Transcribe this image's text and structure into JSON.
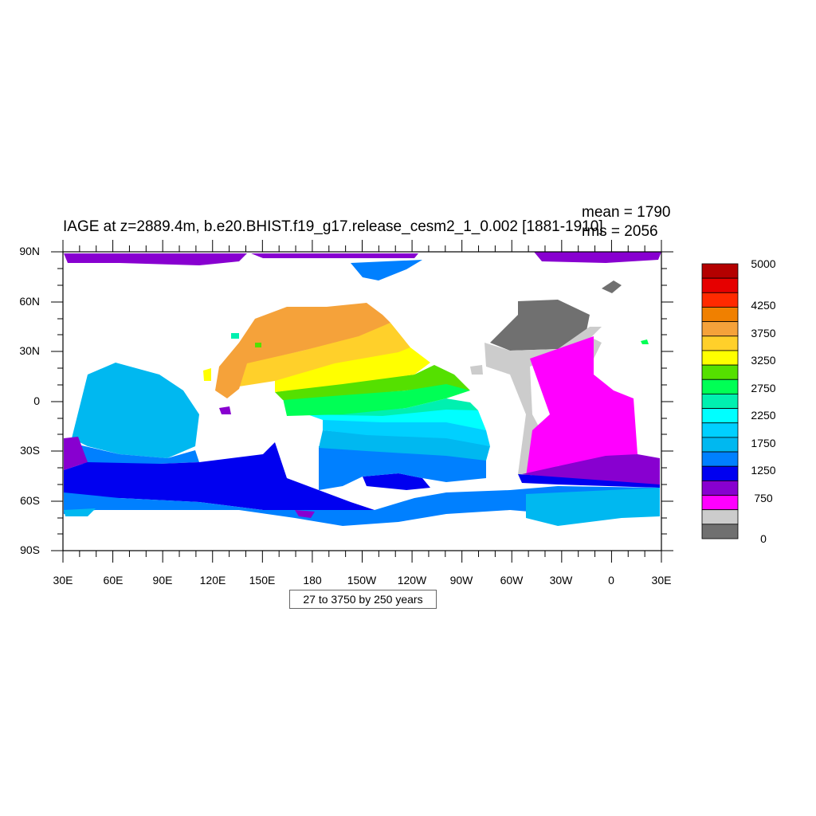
{
  "title": "IAGE at z=2889.4m, b.e20.BHIST.f19_g17.release_cesm2_1_0.002 [1881-1910]",
  "stats": {
    "mean": "mean = 1790",
    "rms": "rms = 2056"
  },
  "contour_info": "27 to 3750 by 250 years",
  "axes": {
    "lat_labels": [
      "90N",
      "60N",
      "30N",
      "0",
      "30S",
      "60S",
      "90S"
    ],
    "lon_labels": [
      "30E",
      "60E",
      "90E",
      "120E",
      "150E",
      "180",
      "150W",
      "120W",
      "90W",
      "60W",
      "30W",
      "0",
      "30E"
    ]
  },
  "colorbar": {
    "labels": [
      "5000",
      "4250",
      "3750",
      "3250",
      "2750",
      "2250",
      "1750",
      "1250",
      "750",
      "0"
    ],
    "colors": [
      "#b40000",
      "#e60000",
      "#ff2a00",
      "#f08000",
      "#f5a23a",
      "#ffd02a",
      "#ffff00",
      "#55e000",
      "#00ff55",
      "#00f0b0",
      "#00ffff",
      "#00d0ff",
      "#00b8f0",
      "#0080ff",
      "#0000f0",
      "#8800d0",
      "#ff00ff",
      "#cccccc",
      "#707070"
    ]
  },
  "map_data": {
    "projection": "cylindrical-equidistant",
    "lon_range": [
      30,
      390
    ],
    "lat_range": [
      -90,
      90
    ],
    "field": "IAGE",
    "units": "years",
    "depth_m": 2889.4
  }
}
